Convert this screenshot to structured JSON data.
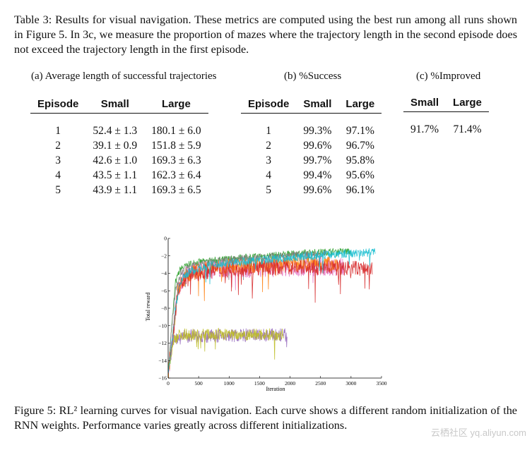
{
  "table_caption": "Table 3: Results for visual navigation. These metrics are computed using the best run among all runs shown in Figure 5. In 3c, we measure the proportion of mazes where the trajectory length in the second episode does not exceed the trajectory length in the first episode.",
  "table_a": {
    "title": "(a) Average length of successful trajectories",
    "headers": [
      "Episode",
      "Small",
      "Large"
    ],
    "rows": [
      [
        "1",
        "52.4 ± 1.3",
        "180.1 ± 6.0"
      ],
      [
        "2",
        "39.1 ± 0.9",
        "151.8 ± 5.9"
      ],
      [
        "3",
        "42.6 ± 1.0",
        "169.3 ± 6.3"
      ],
      [
        "4",
        "43.5 ± 1.1",
        "162.3 ± 6.4"
      ],
      [
        "5",
        "43.9 ± 1.1",
        "169.3 ± 6.5"
      ]
    ]
  },
  "table_b": {
    "title": "(b) %Success",
    "headers": [
      "Episode",
      "Small",
      "Large"
    ],
    "rows": [
      [
        "1",
        "99.3%",
        "97.1%"
      ],
      [
        "2",
        "99.6%",
        "96.7%"
      ],
      [
        "3",
        "99.7%",
        "95.8%"
      ],
      [
        "4",
        "99.4%",
        "95.6%"
      ],
      [
        "5",
        "99.6%",
        "96.1%"
      ]
    ]
  },
  "table_c": {
    "title": "(c) %Improved",
    "headers": [
      "Small",
      "Large"
    ],
    "rows": [
      [
        "91.7%",
        "71.4%"
      ]
    ]
  },
  "chart_data": {
    "type": "line",
    "xlabel": "Iteration",
    "ylabel": "Total reward",
    "xlim": [
      0,
      3500
    ],
    "ylim": [
      -16,
      0
    ],
    "x_ticks": [
      0,
      500,
      1000,
      1500,
      2000,
      2500,
      3000,
      3500
    ],
    "y_ticks": [
      0,
      -2,
      -4,
      -6,
      -8,
      -10,
      -12,
      -14,
      -16
    ],
    "grid": false,
    "series": [
      {
        "color": "#2ca02c",
        "x": [
          0,
          60,
          120,
          200,
          400,
          800,
          1200,
          1600,
          2000,
          2400,
          2800,
          3000
        ],
        "y": [
          -15.5,
          -10,
          -5,
          -3.5,
          -2.8,
          -2.5,
          -2.2,
          -2.0,
          -1.8,
          -1.6,
          -1.5,
          -1.5
        ],
        "noise": 0.4
      },
      {
        "color": "#7f7f7f",
        "x": [
          0,
          60,
          120,
          200,
          400,
          800,
          1200,
          1600,
          2000,
          2400,
          2600
        ],
        "y": [
          -15.5,
          -10,
          -6,
          -4,
          -3.2,
          -2.7,
          -2.4,
          -2.2,
          -2.0,
          -1.9,
          -1.8
        ],
        "noise": 0.5
      },
      {
        "color": "#e377c2",
        "x": [
          0,
          80,
          160,
          300,
          600,
          1000,
          1500,
          2000,
          2500,
          2900
        ],
        "y": [
          -15.5,
          -11,
          -6,
          -4,
          -3.6,
          -3.5,
          -3.4,
          -3.3,
          -3.2,
          -3.2
        ],
        "noise": 1.1
      },
      {
        "color": "#ff7f0e",
        "x": [
          0,
          80,
          160,
          300,
          600,
          1000,
          1500,
          2000,
          2500,
          2800
        ],
        "y": [
          -15.5,
          -11,
          -6,
          -4.2,
          -3.5,
          -3.2,
          -3.0,
          -2.9,
          -2.9,
          -2.9
        ],
        "noise": 0.9
      },
      {
        "color": "#d62728",
        "x": [
          0,
          80,
          160,
          300,
          600,
          1000,
          1500,
          2000,
          2500,
          3000,
          3350
        ],
        "y": [
          -15.5,
          -11,
          -6,
          -4.3,
          -3.8,
          -3.5,
          -3.4,
          -3.3,
          -3.3,
          -3.4,
          -3.5
        ],
        "noise": 0.9
      },
      {
        "color": "#9467bd",
        "x": [
          0,
          100,
          200,
          400,
          800,
          1200,
          1600,
          1950
        ],
        "y": [
          -15.0,
          -11.5,
          -11.3,
          -11.2,
          -11.2,
          -11.1,
          -11.1,
          -11.1
        ],
        "noise": 0.8
      },
      {
        "color": "#bcbd22",
        "x": [
          0,
          100,
          200,
          400,
          800,
          1200,
          1600,
          1900
        ],
        "y": [
          -15.0,
          -11.5,
          -11.0,
          -11.0,
          -11.0,
          -11.0,
          -11.0,
          -11.0
        ],
        "noise": 0.7
      },
      {
        "color": "#17becf",
        "x": [
          0,
          60,
          120,
          200,
          300,
          600,
          1000,
          1500,
          2000,
          2500,
          3000,
          3400
        ],
        "y": [
          -15.5,
          -12,
          -8,
          -5,
          -4,
          -3.2,
          -2.8,
          -2.5,
          -2.2,
          -1.9,
          -1.7,
          -1.6
        ],
        "noise": 0.5
      }
    ]
  },
  "figure_caption": "Figure 5: RL² learning curves for visual navigation. Each curve shows a different random initialization of the RNN weights. Performance varies greatly across different initializations.",
  "watermark": "云栖社区 yq.aliyun.com"
}
